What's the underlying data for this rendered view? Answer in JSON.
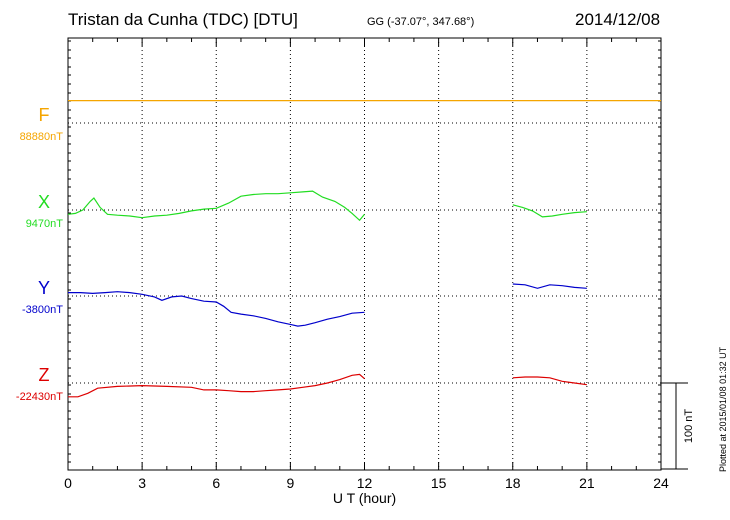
{
  "header": {
    "title": "Tristan da Cunha (TDC)  [DTU]",
    "coords": "GG (-37.07°, 347.68°)",
    "date": "2014/12/08"
  },
  "footer": {
    "plotted": "Plotted at 2015/01/08 01:32 UT"
  },
  "chart_data": {
    "type": "line",
    "xlabel": "U T (hour)",
    "xlim": [
      0,
      24
    ],
    "xticks": [
      0,
      3,
      6,
      9,
      12,
      15,
      18,
      21,
      24
    ],
    "grid": true,
    "grid_style": "dotted",
    "scale_bar": {
      "label": "100 nT",
      "value": 100
    },
    "series": [
      {
        "name": "F",
        "baseline_label": "88880nT",
        "baseline_nT": 88880,
        "color": "#f5a500",
        "x": [
          0,
          12,
          18,
          24
        ],
        "y": [
          26,
          26,
          26,
          26
        ]
      },
      {
        "name": "X",
        "baseline_label": "9470nT",
        "baseline_nT": 9470,
        "color": "#22dd22",
        "x": [
          0,
          0.3,
          0.6,
          0.9,
          1.05,
          1.3,
          1.6,
          2.0,
          2.5,
          3.0,
          3.5,
          4.0,
          4.5,
          5.0,
          5.5,
          6.0,
          6.5,
          7.0,
          7.5,
          8.0,
          8.5,
          9.0,
          9.5,
          9.9,
          10.3,
          10.8,
          11.2,
          11.5,
          11.8,
          12.0,
          null,
          18.0,
          18.4,
          18.8,
          19.2,
          19.6,
          20.0,
          20.5,
          21.0
        ],
        "y": [
          -5,
          -4,
          0,
          10,
          14,
          3,
          -5,
          -6,
          -7,
          -9,
          -7,
          -6,
          -4,
          -1,
          1,
          2,
          8,
          16,
          18,
          19,
          19,
          20,
          21,
          22,
          15,
          10,
          3,
          -4,
          -12,
          -5,
          null,
          6,
          3,
          -1,
          -8,
          -7,
          -5,
          -3,
          -2
        ]
      },
      {
        "name": "Y",
        "baseline_label": "-3800nT",
        "baseline_nT": -3800,
        "color": "#0000cc",
        "x": [
          0,
          0.5,
          1.0,
          1.5,
          2.0,
          2.5,
          3.0,
          3.5,
          3.8,
          4.2,
          4.6,
          5.0,
          5.5,
          6.0,
          6.3,
          6.6,
          7.0,
          7.5,
          8.0,
          8.5,
          9.0,
          9.3,
          9.6,
          10.0,
          10.5,
          11.0,
          11.5,
          12.0,
          null,
          18.0,
          18.5,
          19.0,
          19.5,
          20.0,
          20.5,
          21.0
        ],
        "y": [
          4,
          4,
          3,
          4,
          5,
          4,
          2,
          -1,
          -5,
          -1,
          0,
          -3,
          -6,
          -7,
          -12,
          -19,
          -21,
          -23,
          -26,
          -30,
          -33,
          -35,
          -34,
          -31,
          -27,
          -24,
          -20,
          -19,
          null,
          14,
          13,
          9,
          13,
          12,
          10,
          9
        ]
      },
      {
        "name": "Z",
        "baseline_label": "-22430nT",
        "baseline_nT": -22430,
        "color": "#dd0000",
        "x": [
          0,
          0.4,
          0.8,
          1.2,
          2.0,
          3.0,
          4.0,
          5.0,
          5.5,
          6.0,
          6.5,
          7.0,
          7.5,
          8.0,
          8.5,
          9.0,
          9.5,
          10.0,
          10.5,
          11.0,
          11.5,
          11.8,
          12.0,
          null,
          18.0,
          18.5,
          19.0,
          19.5,
          20.0,
          20.5,
          21.0
        ],
        "y": [
          -16,
          -16,
          -12,
          -6,
          -4,
          -3,
          -4,
          -5,
          -8,
          -8,
          -9,
          -10,
          -10,
          -9,
          -8,
          -7,
          -5,
          -3,
          0,
          4,
          9,
          10,
          5,
          null,
          6,
          7,
          7,
          6,
          2,
          0,
          -2
        ]
      }
    ]
  }
}
